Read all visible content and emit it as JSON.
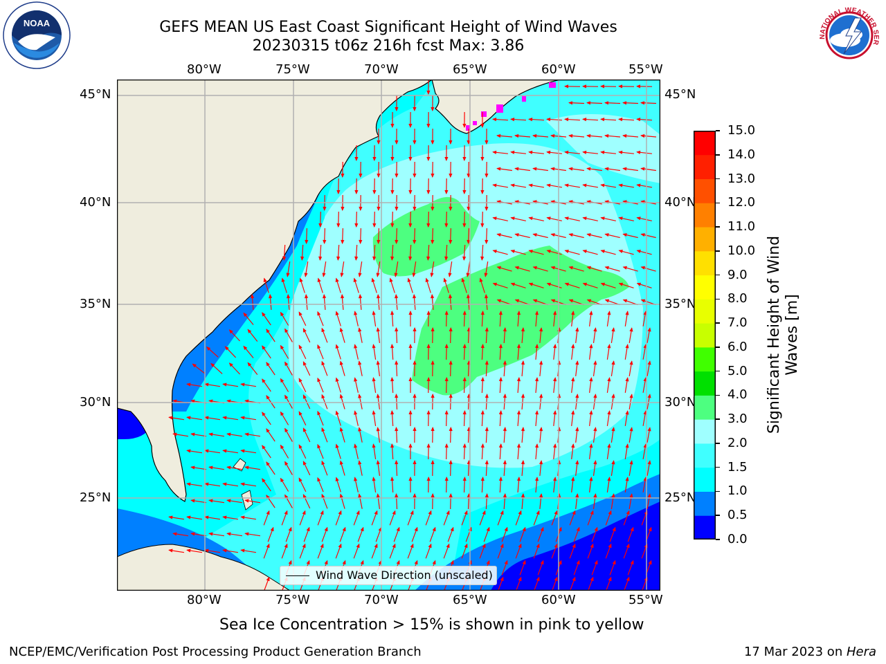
{
  "title": {
    "line1": "GEFS MEAN US East Coast Significant Height of Wind Waves",
    "line2": "20230315 t06z 216h fcst   Max: 3.86"
  },
  "map": {
    "lon_labels": [
      "80°W",
      "75°W",
      "70°W",
      "65°W",
      "60°W",
      "55°W"
    ],
    "lat_labels": [
      "45°N",
      "40°N",
      "35°N",
      "30°N",
      "25°N"
    ],
    "legend_label": "Wind Wave Direction (unscaled)",
    "arrow_color": "#ff0000",
    "land_color": "#efedde",
    "gridline_color": "#b0b0b0"
  },
  "colorbar": {
    "label": "Significant Height of Wind Waves [m]",
    "ticks": [
      "0.0",
      "0.5",
      "1.0",
      "1.5",
      "2.0",
      "3.0",
      "4.0",
      "5.0",
      "6.0",
      "7.0",
      "8.0",
      "9.0",
      "10.0",
      "11.0",
      "12.0",
      "13.0",
      "14.0",
      "15.0"
    ],
    "colors": [
      "#0000ff",
      "#0080ff",
      "#00ffff",
      "#40ffff",
      "#9fffff",
      "#4dff80",
      "#00e000",
      "#40ff00",
      "#c8ff00",
      "#e8ff00",
      "#ffff00",
      "#ffe000",
      "#ffb000",
      "#ff8000",
      "#ff5000",
      "#ff2000",
      "#ff0000"
    ]
  },
  "caption": "Sea Ice Concentration > 15% is shown in pink to yellow",
  "footer": {
    "left": "NCEP/EMC/Verification Post Processing Product Generation Branch",
    "right_date": "17 Mar 2023 on ",
    "right_machine": "Hera"
  },
  "logos": {
    "noaa": "NOAA",
    "nws": "NATIONAL WEATHER SERVICE"
  }
}
